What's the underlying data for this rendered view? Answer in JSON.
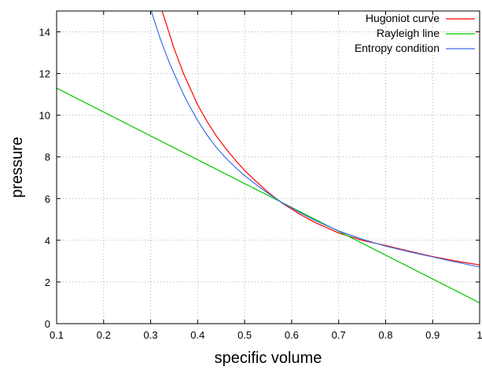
{
  "chart_data": {
    "type": "line",
    "xlabel": "specific volume",
    "ylabel": "pressure",
    "xlim": [
      0.1,
      1.0
    ],
    "ylim": [
      0,
      15
    ],
    "xticks": [
      "0.1",
      "0.2",
      "0.3",
      "0.4",
      "0.5",
      "0.6",
      "0.7",
      "0.8",
      "0.9",
      "1"
    ],
    "yticks": [
      "0",
      "2",
      "4",
      "6",
      "8",
      "10",
      "12",
      "14"
    ],
    "grid": true,
    "legend_position": "top-right",
    "series": [
      {
        "name": "Hugoniot curve",
        "color": "#ff0000",
        "x": [
          0.32,
          0.33,
          0.34,
          0.35,
          0.36,
          0.37,
          0.38,
          0.39,
          0.4,
          0.42,
          0.44,
          0.46,
          0.48,
          0.5,
          0.52,
          0.55,
          0.58,
          0.6,
          0.62,
          0.65,
          0.7,
          0.75,
          0.8,
          0.85,
          0.9,
          0.95,
          1.0
        ],
        "y": [
          15.3,
          14.6,
          13.9,
          13.2,
          12.6,
          12.0,
          11.5,
          11.0,
          10.5,
          9.7,
          9.0,
          8.4,
          7.85,
          7.35,
          6.92,
          6.3,
          5.78,
          5.5,
          5.22,
          4.85,
          4.35,
          4.0,
          3.75,
          3.48,
          3.22,
          3.0,
          2.82
        ]
      },
      {
        "name": "Rayleigh line",
        "color": "#00c800",
        "x": [
          0.1,
          1.0
        ],
        "y": [
          11.3,
          1.0
        ]
      },
      {
        "name": "Entropy condition",
        "color": "#3c6ee6",
        "x": [
          0.3,
          0.31,
          0.32,
          0.33,
          0.34,
          0.35,
          0.36,
          0.37,
          0.38,
          0.39,
          0.4,
          0.42,
          0.44,
          0.46,
          0.48,
          0.5,
          0.52,
          0.55,
          0.58,
          0.6,
          0.62,
          0.65,
          0.7,
          0.75,
          0.8,
          0.85,
          0.9,
          0.95,
          1.0
        ],
        "y": [
          15.1,
          14.4,
          13.7,
          13.1,
          12.5,
          12.0,
          11.5,
          11.0,
          10.55,
          10.15,
          9.75,
          9.05,
          8.45,
          7.95,
          7.5,
          7.1,
          6.75,
          6.25,
          5.8,
          5.55,
          5.3,
          4.95,
          4.45,
          4.05,
          3.72,
          3.45,
          3.2,
          2.95,
          2.72
        ]
      }
    ]
  }
}
